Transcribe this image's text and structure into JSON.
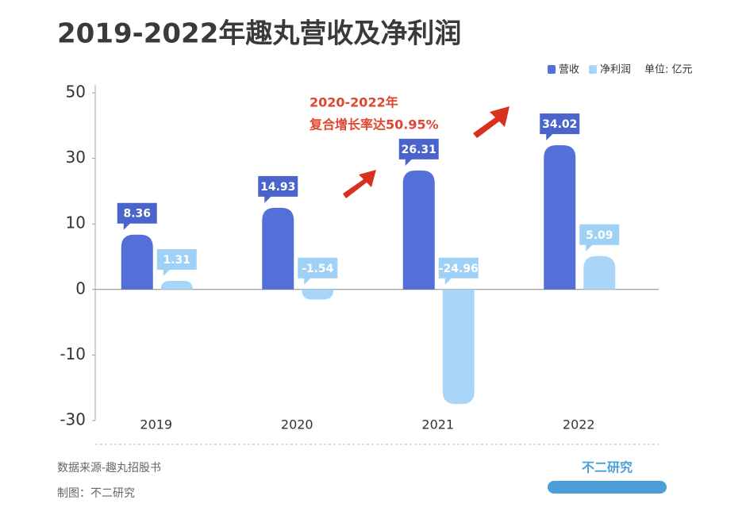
{
  "chart_data": {
    "type": "bar",
    "title": "2019-2022年趣丸营收及净利润",
    "unit": "单位: 亿元",
    "annotation": [
      "2020-2022年",
      "复合增长率达50.95%"
    ],
    "categories": [
      "2019",
      "2020",
      "2021",
      "2022"
    ],
    "series": [
      {
        "name": "营收",
        "color": "#5470d8",
        "label_color": "#4a64cc",
        "values": [
          8.36,
          14.93,
          26.31,
          34.02
        ]
      },
      {
        "name": "净利润",
        "color": "#a9d6f8",
        "label_color": "#9fd0f5",
        "values": [
          1.31,
          -1.54,
          -24.96,
          5.09
        ]
      }
    ],
    "ylim": [
      -30,
      50
    ],
    "yticks": [
      50,
      30,
      10,
      0,
      -10,
      -30
    ],
    "source": "数据来源-趣丸招股书",
    "credit": "制图：不二研究",
    "brand": "不二研究"
  }
}
